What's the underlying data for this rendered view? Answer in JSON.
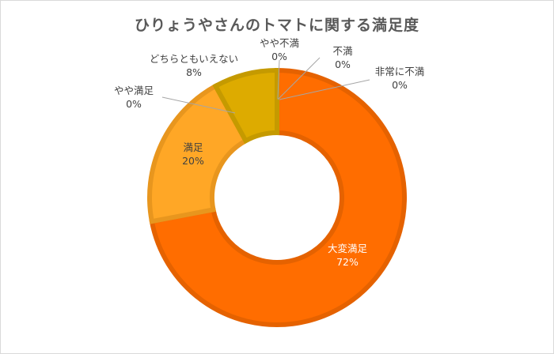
{
  "chart_data": {
    "type": "pie",
    "variant": "donut",
    "title": "ひりょうやさんのトマトに関する満足度",
    "categories": [
      "大変満足",
      "満足",
      "やや満足",
      "どちらともいえない",
      "やや不満",
      "不満",
      "非常に不満"
    ],
    "values": [
      72,
      20,
      0,
      8,
      0,
      0,
      0
    ],
    "labels": [
      "72%",
      "20%",
      "0%",
      "8%",
      "0%",
      "0%",
      "0%"
    ],
    "colors": [
      "#FF6D00",
      "#FFA726",
      "#FFA726",
      "#DDAB00",
      "#DDAB00",
      "#FF6D00",
      "#FF6D00"
    ],
    "border_colors": [
      "#E56200",
      "#E8961E",
      "#E8961E",
      "#C59A00",
      "#C59A00",
      "#E56200",
      "#E56200"
    ],
    "legend": "none"
  }
}
